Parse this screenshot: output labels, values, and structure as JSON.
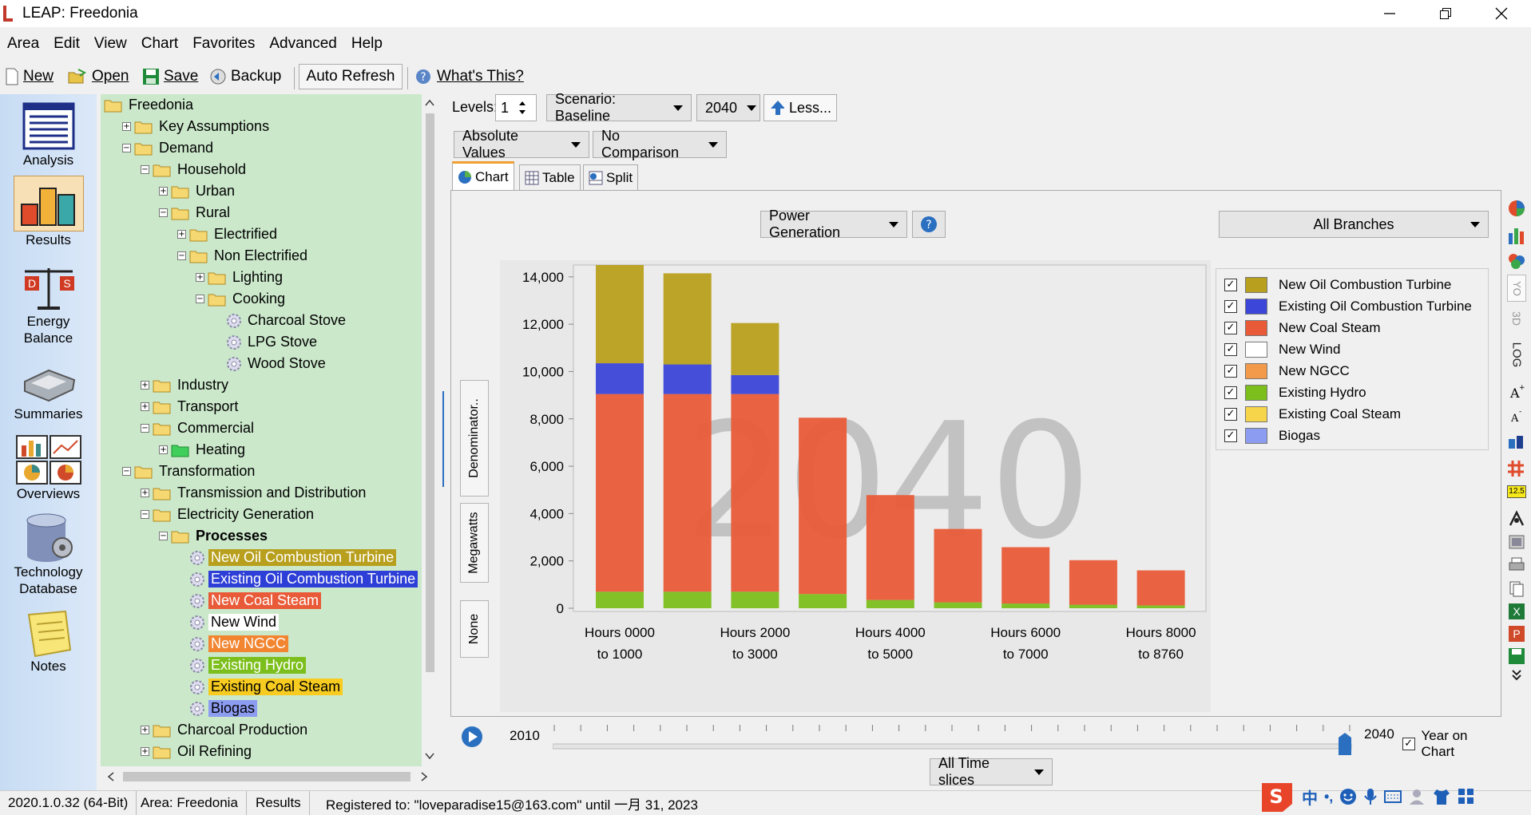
{
  "window": {
    "title": "LEAP: Freedonia"
  },
  "menu": [
    "Area",
    "Edit",
    "View",
    "Chart",
    "Favorites",
    "Advanced",
    "Help"
  ],
  "toolbar": {
    "new": "New",
    "open": "Open",
    "save": "Save",
    "backup": "Backup",
    "auto_refresh": "Auto Refresh",
    "whats_this": "What's This?"
  },
  "nav": [
    {
      "label": "Analysis"
    },
    {
      "label": "Results"
    },
    {
      "label": "Energy\nBalance"
    },
    {
      "label": "Summaries"
    },
    {
      "label": "Overviews"
    },
    {
      "label": "Technology\nDatabase"
    },
    {
      "label": "Notes"
    }
  ],
  "tree": [
    {
      "label": "Freedonia",
      "level": 0,
      "type": "folder",
      "exp": "none"
    },
    {
      "label": "Key Assumptions",
      "level": 1,
      "type": "folder",
      "exp": "+"
    },
    {
      "label": "Demand",
      "level": 1,
      "type": "folder",
      "exp": "-"
    },
    {
      "label": "Household",
      "level": 2,
      "type": "folder",
      "exp": "-"
    },
    {
      "label": "Urban",
      "level": 3,
      "type": "folder",
      "exp": "+"
    },
    {
      "label": "Rural",
      "level": 3,
      "type": "folder",
      "exp": "-"
    },
    {
      "label": "Electrified",
      "level": 4,
      "type": "folder",
      "exp": "+"
    },
    {
      "label": "Non Electrified",
      "level": 4,
      "type": "folder",
      "exp": "-"
    },
    {
      "label": "Lighting",
      "level": 5,
      "type": "folder",
      "exp": "+"
    },
    {
      "label": "Cooking",
      "level": 5,
      "type": "folder",
      "exp": "-"
    },
    {
      "label": "Charcoal Stove",
      "level": 6,
      "type": "gear",
      "exp": "none"
    },
    {
      "label": "LPG Stove",
      "level": 6,
      "type": "gear",
      "exp": "none"
    },
    {
      "label": "Wood Stove",
      "level": 6,
      "type": "gear",
      "exp": "none"
    },
    {
      "label": "Industry",
      "level": 2,
      "type": "folder",
      "exp": "+"
    },
    {
      "label": "Transport",
      "level": 2,
      "type": "folder",
      "exp": "+"
    },
    {
      "label": "Commercial",
      "level": 2,
      "type": "folder",
      "exp": "-"
    },
    {
      "label": "Heating",
      "level": 3,
      "type": "greenfolder",
      "exp": "+"
    },
    {
      "label": "Transformation",
      "level": 1,
      "type": "folder",
      "exp": "-"
    },
    {
      "label": "Transmission and Distribution",
      "level": 2,
      "type": "folder",
      "exp": "+"
    },
    {
      "label": "Electricity Generation",
      "level": 2,
      "type": "folder",
      "exp": "-"
    },
    {
      "label": "Processes",
      "level": 3,
      "type": "folder",
      "exp": "-",
      "bold": true
    },
    {
      "label": "New Oil Combustion Turbine",
      "level": 4,
      "type": "gear",
      "exp": "none",
      "bg": "#b8a01e",
      "fg": "#ffffff"
    },
    {
      "label": "Existing Oil Combustion Turbine",
      "level": 4,
      "type": "gear",
      "exp": "none",
      "bg": "#2d3fd6",
      "fg": "#ffffff"
    },
    {
      "label": "New Coal Steam",
      "level": 4,
      "type": "gear",
      "exp": "none",
      "bg": "#e95b38",
      "fg": "#ffffff"
    },
    {
      "label": "New Wind",
      "level": 4,
      "type": "gear",
      "exp": "none",
      "bg": "#ffffff",
      "fg": "#000000"
    },
    {
      "label": "New NGCC",
      "level": 4,
      "type": "gear",
      "exp": "none",
      "bg": "#f28530",
      "fg": "#ffffff"
    },
    {
      "label": "Existing Hydro",
      "level": 4,
      "type": "gear",
      "exp": "none",
      "bg": "#7cbf1c",
      "fg": "#ffffff"
    },
    {
      "label": "Existing Coal Steam",
      "level": 4,
      "type": "gear",
      "exp": "none",
      "bg": "#f7cb1f",
      "fg": "#000000"
    },
    {
      "label": "Biogas",
      "level": 4,
      "type": "gear",
      "exp": "none",
      "bg": "#8c9cf0",
      "fg": "#000000"
    },
    {
      "label": "Charcoal Production",
      "level": 2,
      "type": "folder",
      "exp": "+"
    },
    {
      "label": "Oil Refining",
      "level": 2,
      "type": "folder",
      "exp": "+"
    }
  ],
  "controls": {
    "levels_label": "Levels:",
    "levels_value": "1",
    "scenario": "Scenario: Baseline",
    "year": "2040",
    "less": "Less...",
    "absolute": "Absolute Values",
    "comparison": "No Comparison",
    "variable": "Power Generation",
    "branches": "All Branches",
    "timeslices": "All Time slices"
  },
  "tabs": [
    "Chart",
    "Table",
    "Split"
  ],
  "side_buttons": [
    "Denominator..",
    "Megawatts",
    "None"
  ],
  "right_tools_labels": {
    "yo": "YO",
    "threed": "3D",
    "log": "LOG",
    "val": "12.5"
  },
  "slider": {
    "start": "2010",
    "end": "2040",
    "year_on_chart": "Year on Chart",
    "position_fraction": 1.0
  },
  "status": {
    "version": "2020.1.0.32 (64-Bit)",
    "area": "Area: Freedonia",
    "view": "Results",
    "registered": "Registered to: \"loveparadise15@163.com\" until 一月 31, 2023"
  },
  "ime": [
    "中",
    "•,"
  ],
  "chart_data": {
    "type": "bar",
    "stacked": true,
    "watermark": "2040",
    "categories": [
      "Hours 0000 to 1000",
      "",
      "Hours 2000 to 3000",
      "",
      "Hours 4000 to 5000",
      "",
      "Hours 6000 to 7000",
      "",
      "Hours 8000 to 8760"
    ],
    "tick_labels": [
      [
        "Hours 0000",
        "to 1000"
      ],
      [
        "Hours 2000",
        "to 3000"
      ],
      [
        "Hours 4000",
        "to 5000"
      ],
      [
        "Hours 6000",
        "to 7000"
      ],
      [
        "Hours 8000",
        "to 8760"
      ]
    ],
    "yticks": [
      "0",
      "2,000",
      "4,000",
      "6,000",
      "8,000",
      "10,000",
      "12,000",
      "14,000"
    ],
    "ylim": [
      0,
      14500
    ],
    "series": [
      {
        "name": "Existing Hydro",
        "color": "#7cbf1c",
        "values": [
          700,
          700,
          700,
          600,
          350,
          250,
          200,
          150,
          120
        ]
      },
      {
        "name": "New Coal Steam",
        "color": "#e95b38",
        "values": [
          8350,
          8350,
          8350,
          7450,
          4430,
          3100,
          2380,
          1880,
          1480
        ]
      },
      {
        "name": "Existing Oil Combustion Turbine",
        "color": "#3c46d8",
        "values": [
          1300,
          1250,
          800,
          0,
          0,
          0,
          0,
          0,
          0
        ]
      },
      {
        "name": "New Oil Combustion Turbine",
        "color": "#b8a01e",
        "values": [
          4150,
          3850,
          2200,
          0,
          0,
          0,
          0,
          0,
          0
        ]
      }
    ],
    "legend": [
      {
        "name": "New Oil Combustion Turbine",
        "color": "#b8a01e"
      },
      {
        "name": "Existing Oil Combustion Turbine",
        "color": "#3c46d8"
      },
      {
        "name": "New Coal Steam",
        "color": "#e95b38"
      },
      {
        "name": "New Wind",
        "color": "#ffffff"
      },
      {
        "name": "New  NGCC",
        "color": "#f29a4a"
      },
      {
        "name": "Existing Hydro",
        "color": "#7cbf1c"
      },
      {
        "name": "Existing Coal Steam",
        "color": "#f7d54a"
      },
      {
        "name": "Biogas",
        "color": "#8c9cf0"
      }
    ]
  }
}
